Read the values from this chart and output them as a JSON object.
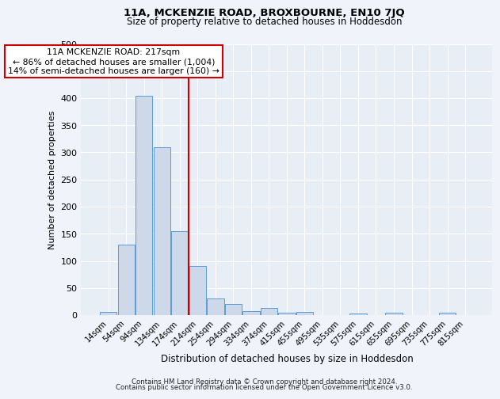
{
  "title": "11A, MCKENZIE ROAD, BROXBOURNE, EN10 7JQ",
  "subtitle": "Size of property relative to detached houses in Hoddesdon",
  "xlabel": "Distribution of detached houses by size in Hoddesdon",
  "ylabel": "Number of detached properties",
  "bar_labels": [
    "14sqm",
    "54sqm",
    "94sqm",
    "134sqm",
    "174sqm",
    "214sqm",
    "254sqm",
    "294sqm",
    "334sqm",
    "374sqm",
    "415sqm",
    "455sqm",
    "495sqm",
    "535sqm",
    "575sqm",
    "615sqm",
    "655sqm",
    "695sqm",
    "735sqm",
    "775sqm",
    "815sqm"
  ],
  "bar_values": [
    6,
    130,
    405,
    310,
    155,
    90,
    30,
    20,
    8,
    13,
    5,
    6,
    0,
    0,
    3,
    0,
    5,
    0,
    0,
    5,
    0
  ],
  "bar_color": "#cdd9e8",
  "bar_edge_color": "#5b9bd5",
  "vline_color": "#cc0000",
  "annotation_text": "11A MCKENZIE ROAD: 217sqm\n← 86% of detached houses are smaller (1,004)\n14% of semi-detached houses are larger (160) →",
  "annotation_box_color": "#cc0000",
  "ylim": [
    0,
    500
  ],
  "yticks": [
    0,
    50,
    100,
    150,
    200,
    250,
    300,
    350,
    400,
    450,
    500
  ],
  "footnote1": "Contains HM Land Registry data © Crown copyright and database right 2024.",
  "footnote2": "Contains public sector information licensed under the Open Government Licence v3.0.",
  "bg_color": "#e8eef6",
  "grid_color": "#ffffff",
  "fig_bg_color": "#f0f4fa"
}
